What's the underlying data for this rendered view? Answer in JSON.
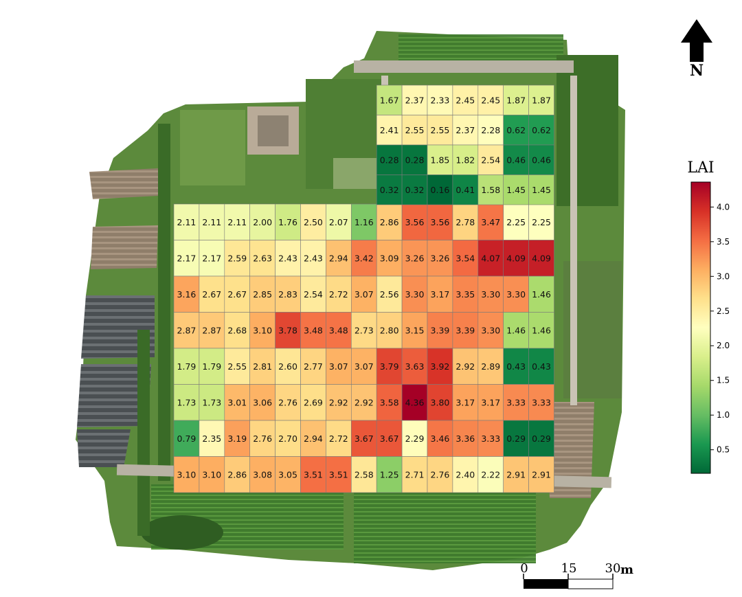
{
  "north_arrow": {
    "label": "N"
  },
  "colorbar": {
    "title": "LAI",
    "colormap": "RdYlGn_r",
    "vmin": 0.16,
    "vmax": 4.36,
    "ticks": [
      "0.5",
      "1.0",
      "1.5",
      "2.0",
      "2.5",
      "3.0",
      "3.5",
      "4.0"
    ]
  },
  "scale_bar": {
    "labels": [
      "0",
      "15",
      "30"
    ],
    "unit": "m"
  },
  "lai_grid": {
    "top_block": [
      [
        "1.67",
        "2.37",
        "2.33",
        "2.45",
        "2.45",
        "1.87",
        "1.87"
      ],
      [
        "2.41",
        "2.55",
        "2.55",
        "2.37",
        "2.28",
        "0.62",
        "0.62"
      ],
      [
        "0.28",
        "0.28",
        "1.85",
        "1.82",
        "2.54",
        "0.46",
        "0.46"
      ],
      [
        "0.32",
        "0.32",
        "0.16",
        "0.41",
        "1.58",
        "1.45",
        "1.45"
      ]
    ],
    "main_block": [
      [
        "2.11",
        "2.11",
        "2.11",
        "2.00",
        "1.76",
        "2.50",
        "2.07",
        "1.16",
        "2.86",
        "3.56",
        "3.56",
        "2.78",
        "3.47",
        "2.25",
        "2.25"
      ],
      [
        "2.17",
        "2.17",
        "2.59",
        "2.63",
        "2.43",
        "2.43",
        "2.94",
        "3.42",
        "3.09",
        "3.26",
        "3.26",
        "3.54",
        "4.07",
        "4.09",
        "4.09"
      ],
      [
        "3.16",
        "2.67",
        "2.67",
        "2.85",
        "2.83",
        "2.54",
        "2.72",
        "3.07",
        "2.56",
        "3.30",
        "3.17",
        "3.35",
        "3.30",
        "3.30",
        "1.46"
      ],
      [
        "2.87",
        "2.87",
        "2.68",
        "3.10",
        "3.78",
        "3.48",
        "3.48",
        "2.73",
        "2.80",
        "3.15",
        "3.39",
        "3.39",
        "3.30",
        "1.46",
        "1.46"
      ],
      [
        "1.79",
        "1.79",
        "2.55",
        "2.81",
        "2.60",
        "2.77",
        "3.07",
        "3.07",
        "3.79",
        "3.63",
        "3.92",
        "2.92",
        "2.89",
        "0.43",
        "0.43"
      ],
      [
        "1.73",
        "1.73",
        "3.01",
        "3.06",
        "2.76",
        "2.69",
        "2.92",
        "2.92",
        "3.58",
        "4.36",
        "3.80",
        "3.17",
        "3.17",
        "3.33",
        "3.33"
      ],
      [
        "0.79",
        "2.35",
        "3.19",
        "2.76",
        "2.70",
        "2.94",
        "2.72",
        "3.67",
        "3.67",
        "2.29",
        "3.46",
        "3.36",
        "3.33",
        "0.29",
        "0.29"
      ],
      [
        "3.10",
        "3.10",
        "2.86",
        "3.08",
        "3.05",
        "3.51",
        "3.51",
        "2.58",
        "1.25",
        "2.71",
        "2.76",
        "2.40",
        "2.22",
        "2.91",
        "2.91"
      ]
    ]
  }
}
